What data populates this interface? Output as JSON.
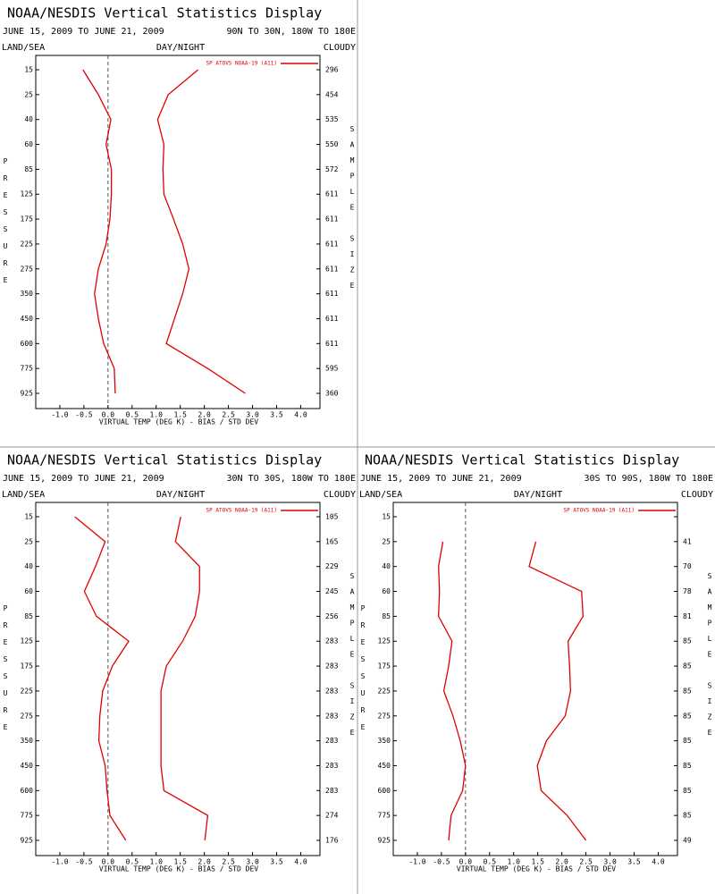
{
  "chart_data": [
    {
      "type": "line",
      "title": "NOAA/NESDIS Vertical Statistics Display",
      "date_range": "JUNE 15, 2009 TO JUNE 21, 2009",
      "region": "90N TO 30N, 180W TO 180E",
      "left_header": "LAND/SEA",
      "center_header": "DAY/NIGHT",
      "right_header": "CLOUDY",
      "y_label": "PRESSURE",
      "y2_label": "SAMPLE SIZE",
      "x_label": "VIRTUAL TEMP (DEG K) - BIAS / STD DEV",
      "legend": "SP ATOVS NOAA-19 (A11)",
      "categories": [
        15,
        25,
        40,
        60,
        85,
        125,
        175,
        225,
        275,
        350,
        450,
        600,
        775,
        925
      ],
      "sample_sizes": [
        296,
        454,
        535,
        550,
        572,
        611,
        611,
        611,
        611,
        611,
        611,
        611,
        595,
        360
      ],
      "series": [
        {
          "color": "#e00000",
          "values": [
            -0.52,
            -0.2,
            0.06,
            -0.04,
            0.07,
            0.07,
            0.04,
            -0.04,
            -0.2,
            -0.28,
            -0.2,
            -0.09,
            0.13,
            0.15
          ]
        },
        {
          "color": "#e00000",
          "values": [
            1.87,
            1.25,
            1.03,
            1.16,
            1.14,
            1.16,
            1.36,
            1.55,
            1.68,
            1.55,
            1.38,
            1.21,
            2.07,
            2.85
          ]
        }
      ],
      "xlim": [
        -1.5,
        4.4
      ],
      "xticks": [
        {
          "value": -1,
          "label": "-1.0"
        },
        {
          "value": -0.5,
          "label": "-0.5"
        },
        {
          "value": 0,
          "label": "0.0"
        },
        {
          "value": 0.5,
          "label": "0.5"
        },
        {
          "value": 1,
          "label": "1.0"
        },
        {
          "value": 1.5,
          "label": "1.5"
        },
        {
          "value": 2,
          "label": "2.0"
        },
        {
          "value": 2.5,
          "label": "2.5"
        },
        {
          "value": 3,
          "label": "3.0"
        },
        {
          "value": 3.5,
          "label": "3.5"
        },
        {
          "value": 4,
          "label": "4.0"
        }
      ]
    },
    {
      "type": "line",
      "title": "NOAA/NESDIS Vertical Statistics Display",
      "date_range": "JUNE 15, 2009 TO JUNE 21, 2009",
      "region": "30N TO 30S, 180W TO 180E",
      "left_header": "LAND/SEA",
      "center_header": "DAY/NIGHT",
      "right_header": "CLOUDY",
      "y_label": "PRESSURE",
      "y2_label": "SAMPLE SIZE",
      "x_label": "VIRTUAL TEMP (DEG K) - BIAS / STD DEV",
      "legend": "SP ATOVS NOAA-19 (A11)",
      "categories": [
        15,
        25,
        40,
        60,
        85,
        125,
        175,
        225,
        275,
        350,
        450,
        600,
        775,
        925
      ],
      "sample_sizes": [
        105,
        165,
        229,
        245,
        256,
        283,
        283,
        283,
        283,
        283,
        283,
        283,
        274,
        176
      ],
      "series": [
        {
          "color": "#e00000",
          "values": [
            -0.69,
            -0.06,
            -0.26,
            -0.49,
            -0.24,
            0.43,
            0.09,
            -0.11,
            -0.17,
            -0.19,
            -0.06,
            -0.02,
            0.04,
            0.37
          ]
        },
        {
          "color": "#e00000",
          "values": [
            1.51,
            1.4,
            1.9,
            1.9,
            1.81,
            1.55,
            1.21,
            1.1,
            1.1,
            1.1,
            1.1,
            1.16,
            2.07,
            2.01
          ]
        }
      ],
      "xlim": [
        -1.5,
        4.4
      ],
      "xticks": [
        {
          "value": -1,
          "label": "-1.0"
        },
        {
          "value": -0.5,
          "label": "-0.5"
        },
        {
          "value": 0,
          "label": "0.0"
        },
        {
          "value": 0.5,
          "label": "0.5"
        },
        {
          "value": 1,
          "label": "1.0"
        },
        {
          "value": 1.5,
          "label": "1.5"
        },
        {
          "value": 2,
          "label": "2.0"
        },
        {
          "value": 2.5,
          "label": "2.5"
        },
        {
          "value": 3,
          "label": "3.0"
        },
        {
          "value": 3.5,
          "label": "3.5"
        },
        {
          "value": 4,
          "label": "4.0"
        }
      ]
    },
    {
      "type": "line",
      "title": "NOAA/NESDIS Vertical Statistics Display",
      "date_range": "JUNE 15, 2009 TO JUNE 21, 2009",
      "region": "30S TO 90S, 180W TO 180E",
      "left_header": "LAND/SEA",
      "center_header": "DAY/NIGHT",
      "right_header": "CLOUDY",
      "y_label": "PRESSURE",
      "y2_label": "SAMPLE SIZE",
      "x_label": "VIRTUAL TEMP (DEG K) - BIAS / STD DEV",
      "legend": "SP ATOVS NOAA-19 (A11)",
      "categories": [
        15,
        25,
        40,
        60,
        85,
        125,
        175,
        225,
        275,
        350,
        450,
        600,
        775,
        925
      ],
      "sample_sizes": [
        null,
        41,
        70,
        78,
        81,
        85,
        85,
        85,
        85,
        85,
        85,
        85,
        85,
        49
      ],
      "series": [
        {
          "color": "#e00000",
          "values": [
            null,
            -0.47,
            -0.56,
            -0.54,
            -0.56,
            -0.28,
            -0.35,
            -0.45,
            -0.26,
            -0.11,
            0,
            -0.06,
            -0.3,
            -0.35
          ]
        },
        {
          "color": "#e00000",
          "values": [
            null,
            1.46,
            1.32,
            2.41,
            2.44,
            2.13,
            2.16,
            2.18,
            2.07,
            1.68,
            1.49,
            1.57,
            2.11,
            2.5
          ]
        }
      ],
      "xlim": [
        -1.5,
        4.4
      ],
      "xticks": [
        {
          "value": -1,
          "label": "-1.0"
        },
        {
          "value": -0.5,
          "label": "-0.5"
        },
        {
          "value": 0,
          "label": "0.0"
        },
        {
          "value": 0.5,
          "label": "0.5"
        },
        {
          "value": 1,
          "label": "1.0"
        },
        {
          "value": 1.5,
          "label": "1.5"
        },
        {
          "value": 2,
          "label": "2.0"
        },
        {
          "value": 2.5,
          "label": "2.5"
        },
        {
          "value": 3,
          "label": "3.0"
        },
        {
          "value": 3.5,
          "label": "3.5"
        },
        {
          "value": 4,
          "label": "4.0"
        }
      ]
    }
  ]
}
